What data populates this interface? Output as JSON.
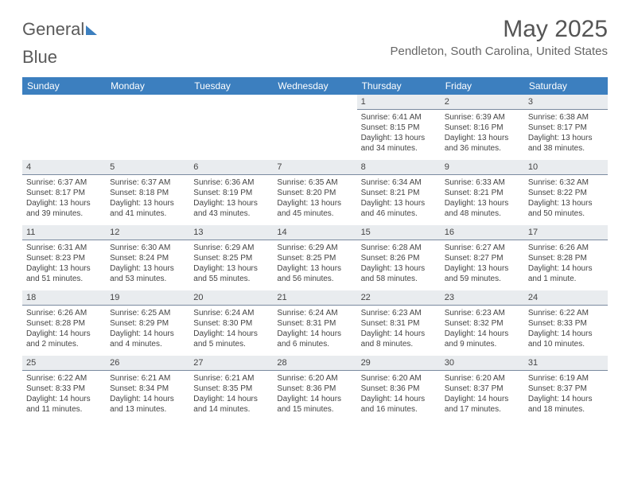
{
  "brand": {
    "part1": "General",
    "part2": "Blue"
  },
  "title": "May 2025",
  "location": "Pendleton, South Carolina, United States",
  "colors": {
    "header_bg": "#3c7fbf",
    "daynum_bg": "#e9ecef",
    "daynum_border": "#7a8aa0"
  },
  "weekday_labels": [
    "Sunday",
    "Monday",
    "Tuesday",
    "Wednesday",
    "Thursday",
    "Friday",
    "Saturday"
  ],
  "weeks": [
    [
      null,
      null,
      null,
      null,
      {
        "n": "1",
        "sr": "Sunrise: 6:41 AM",
        "ss": "Sunset: 8:15 PM",
        "d1": "Daylight: 13 hours",
        "d2": "and 34 minutes."
      },
      {
        "n": "2",
        "sr": "Sunrise: 6:39 AM",
        "ss": "Sunset: 8:16 PM",
        "d1": "Daylight: 13 hours",
        "d2": "and 36 minutes."
      },
      {
        "n": "3",
        "sr": "Sunrise: 6:38 AM",
        "ss": "Sunset: 8:17 PM",
        "d1": "Daylight: 13 hours",
        "d2": "and 38 minutes."
      }
    ],
    [
      {
        "n": "4",
        "sr": "Sunrise: 6:37 AM",
        "ss": "Sunset: 8:17 PM",
        "d1": "Daylight: 13 hours",
        "d2": "and 39 minutes."
      },
      {
        "n": "5",
        "sr": "Sunrise: 6:37 AM",
        "ss": "Sunset: 8:18 PM",
        "d1": "Daylight: 13 hours",
        "d2": "and 41 minutes."
      },
      {
        "n": "6",
        "sr": "Sunrise: 6:36 AM",
        "ss": "Sunset: 8:19 PM",
        "d1": "Daylight: 13 hours",
        "d2": "and 43 minutes."
      },
      {
        "n": "7",
        "sr": "Sunrise: 6:35 AM",
        "ss": "Sunset: 8:20 PM",
        "d1": "Daylight: 13 hours",
        "d2": "and 45 minutes."
      },
      {
        "n": "8",
        "sr": "Sunrise: 6:34 AM",
        "ss": "Sunset: 8:21 PM",
        "d1": "Daylight: 13 hours",
        "d2": "and 46 minutes."
      },
      {
        "n": "9",
        "sr": "Sunrise: 6:33 AM",
        "ss": "Sunset: 8:21 PM",
        "d1": "Daylight: 13 hours",
        "d2": "and 48 minutes."
      },
      {
        "n": "10",
        "sr": "Sunrise: 6:32 AM",
        "ss": "Sunset: 8:22 PM",
        "d1": "Daylight: 13 hours",
        "d2": "and 50 minutes."
      }
    ],
    [
      {
        "n": "11",
        "sr": "Sunrise: 6:31 AM",
        "ss": "Sunset: 8:23 PM",
        "d1": "Daylight: 13 hours",
        "d2": "and 51 minutes."
      },
      {
        "n": "12",
        "sr": "Sunrise: 6:30 AM",
        "ss": "Sunset: 8:24 PM",
        "d1": "Daylight: 13 hours",
        "d2": "and 53 minutes."
      },
      {
        "n": "13",
        "sr": "Sunrise: 6:29 AM",
        "ss": "Sunset: 8:25 PM",
        "d1": "Daylight: 13 hours",
        "d2": "and 55 minutes."
      },
      {
        "n": "14",
        "sr": "Sunrise: 6:29 AM",
        "ss": "Sunset: 8:25 PM",
        "d1": "Daylight: 13 hours",
        "d2": "and 56 minutes."
      },
      {
        "n": "15",
        "sr": "Sunrise: 6:28 AM",
        "ss": "Sunset: 8:26 PM",
        "d1": "Daylight: 13 hours",
        "d2": "and 58 minutes."
      },
      {
        "n": "16",
        "sr": "Sunrise: 6:27 AM",
        "ss": "Sunset: 8:27 PM",
        "d1": "Daylight: 13 hours",
        "d2": "and 59 minutes."
      },
      {
        "n": "17",
        "sr": "Sunrise: 6:26 AM",
        "ss": "Sunset: 8:28 PM",
        "d1": "Daylight: 14 hours",
        "d2": "and 1 minute."
      }
    ],
    [
      {
        "n": "18",
        "sr": "Sunrise: 6:26 AM",
        "ss": "Sunset: 8:28 PM",
        "d1": "Daylight: 14 hours",
        "d2": "and 2 minutes."
      },
      {
        "n": "19",
        "sr": "Sunrise: 6:25 AM",
        "ss": "Sunset: 8:29 PM",
        "d1": "Daylight: 14 hours",
        "d2": "and 4 minutes."
      },
      {
        "n": "20",
        "sr": "Sunrise: 6:24 AM",
        "ss": "Sunset: 8:30 PM",
        "d1": "Daylight: 14 hours",
        "d2": "and 5 minutes."
      },
      {
        "n": "21",
        "sr": "Sunrise: 6:24 AM",
        "ss": "Sunset: 8:31 PM",
        "d1": "Daylight: 14 hours",
        "d2": "and 6 minutes."
      },
      {
        "n": "22",
        "sr": "Sunrise: 6:23 AM",
        "ss": "Sunset: 8:31 PM",
        "d1": "Daylight: 14 hours",
        "d2": "and 8 minutes."
      },
      {
        "n": "23",
        "sr": "Sunrise: 6:23 AM",
        "ss": "Sunset: 8:32 PM",
        "d1": "Daylight: 14 hours",
        "d2": "and 9 minutes."
      },
      {
        "n": "24",
        "sr": "Sunrise: 6:22 AM",
        "ss": "Sunset: 8:33 PM",
        "d1": "Daylight: 14 hours",
        "d2": "and 10 minutes."
      }
    ],
    [
      {
        "n": "25",
        "sr": "Sunrise: 6:22 AM",
        "ss": "Sunset: 8:33 PM",
        "d1": "Daylight: 14 hours",
        "d2": "and 11 minutes."
      },
      {
        "n": "26",
        "sr": "Sunrise: 6:21 AM",
        "ss": "Sunset: 8:34 PM",
        "d1": "Daylight: 14 hours",
        "d2": "and 13 minutes."
      },
      {
        "n": "27",
        "sr": "Sunrise: 6:21 AM",
        "ss": "Sunset: 8:35 PM",
        "d1": "Daylight: 14 hours",
        "d2": "and 14 minutes."
      },
      {
        "n": "28",
        "sr": "Sunrise: 6:20 AM",
        "ss": "Sunset: 8:36 PM",
        "d1": "Daylight: 14 hours",
        "d2": "and 15 minutes."
      },
      {
        "n": "29",
        "sr": "Sunrise: 6:20 AM",
        "ss": "Sunset: 8:36 PM",
        "d1": "Daylight: 14 hours",
        "d2": "and 16 minutes."
      },
      {
        "n": "30",
        "sr": "Sunrise: 6:20 AM",
        "ss": "Sunset: 8:37 PM",
        "d1": "Daylight: 14 hours",
        "d2": "and 17 minutes."
      },
      {
        "n": "31",
        "sr": "Sunrise: 6:19 AM",
        "ss": "Sunset: 8:37 PM",
        "d1": "Daylight: 14 hours",
        "d2": "and 18 minutes."
      }
    ]
  ]
}
